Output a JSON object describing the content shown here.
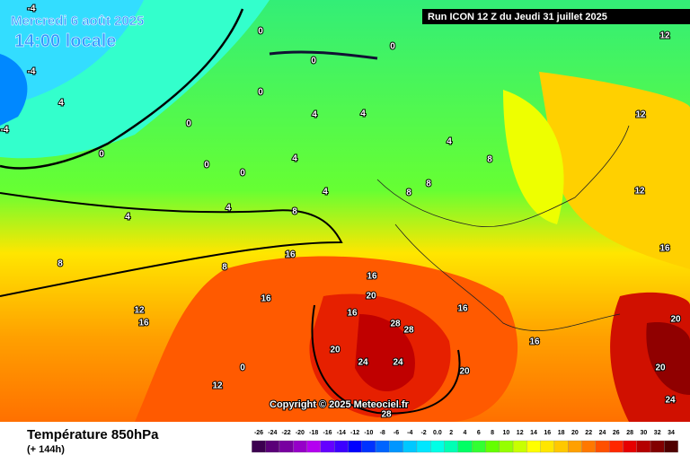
{
  "header": {
    "title": "Mercredi 6 août 2025",
    "time": "14:00 locale",
    "run": "Run ICON 12 Z du Jeudi 31 juillet 2025"
  },
  "copyright": "Copyright © 2025 Meteociel.fr",
  "footer": {
    "variable": "Température 850hPa",
    "lead": "(+ 144h)"
  },
  "legend": {
    "labels": [
      "-26",
      "-24",
      "-22",
      "-20",
      "-18",
      "-16",
      "-14",
      "-12",
      "-10",
      "-8",
      "-6",
      "-4",
      "-2",
      "0.0",
      "2",
      "4",
      "6",
      "8",
      "10",
      "12",
      "14",
      "16",
      "18",
      "20",
      "22",
      "24",
      "26",
      "28",
      "30",
      "32",
      "34"
    ],
    "colors": [
      "#3c0050",
      "#5a0078",
      "#7800a0",
      "#9600c8",
      "#b400f0",
      "#6400ff",
      "#3c00ff",
      "#0000ff",
      "#0032ff",
      "#0064ff",
      "#0096ff",
      "#00c8ff",
      "#00e6ff",
      "#00ffe6",
      "#00ffb4",
      "#00ff64",
      "#32ff32",
      "#64ff00",
      "#96ff00",
      "#c8ff00",
      "#ffff00",
      "#ffe600",
      "#ffc800",
      "#ffa000",
      "#ff7800",
      "#ff5000",
      "#ff2800",
      "#e60000",
      "#b40000",
      "#820000",
      "#500000"
    ]
  },
  "contour_labels": [
    "-4",
    "-4",
    "-4",
    "4",
    "0",
    "0",
    "0",
    "0",
    "0",
    "0",
    "0",
    "0",
    "4",
    "4",
    "4",
    "4",
    "4",
    "4",
    "8",
    "8",
    "8",
    "8",
    "8",
    "12",
    "12",
    "12",
    "12",
    "16",
    "16",
    "16",
    "16",
    "16",
    "16",
    "16",
    "20",
    "20",
    "20",
    "20",
    "24",
    "24",
    "28",
    "28",
    "28",
    "12",
    "16",
    "8",
    "4",
    "0",
    "20",
    "24"
  ]
}
